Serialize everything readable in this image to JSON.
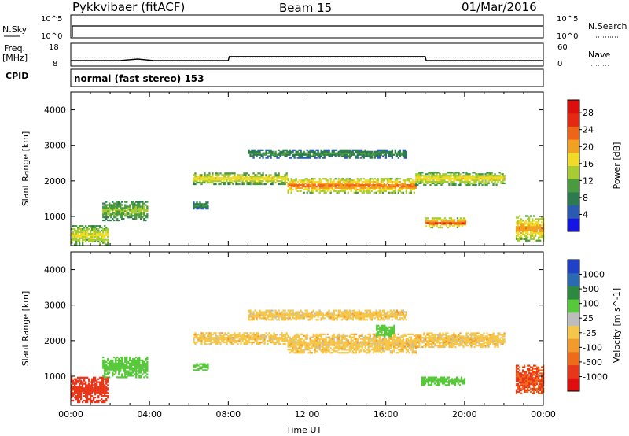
{
  "header": {
    "title": "Pykkvibaer (fitACF)",
    "beam": "Beam 15",
    "date": "01/Mar/2016"
  },
  "noise_panel": {
    "left_label": "N.Sky",
    "right_label": "N.Search",
    "left_ticks": [
      "10^5",
      "10^0"
    ],
    "right_ticks": [
      "10^5",
      "10^0"
    ]
  },
  "freq_panel": {
    "left_label_1": "Freq.",
    "left_label_2": "[MHz]",
    "right_label": "Nave",
    "left_ticks": [
      "18",
      "8"
    ],
    "right_ticks": [
      "60",
      "0"
    ],
    "freq_series": [
      {
        "x": 0,
        "y": 9.8
      },
      {
        "x": 2.5,
        "y": 9.8
      },
      {
        "x": 3.4,
        "y": 10.6
      },
      {
        "x": 4.2,
        "y": 9.8
      },
      {
        "x": 8.0,
        "y": 9.8
      },
      {
        "x": 8.05,
        "y": 12.0
      },
      {
        "x": 18.0,
        "y": 12.0
      },
      {
        "x": 18.05,
        "y": 9.8
      },
      {
        "x": 24,
        "y": 9.8
      }
    ],
    "nave_series": [
      {
        "x": 0,
        "y": 22
      },
      {
        "x": 24,
        "y": 22
      }
    ]
  },
  "cpid": {
    "label": "CPID",
    "text": "normal (fast stereo) 153"
  },
  "chart_data": [
    {
      "type": "heatmap",
      "title": "",
      "xlabel": "Time UT",
      "ylabel": "Slant Range [km]",
      "xlim": [
        0,
        24
      ],
      "ylim": [
        180,
        4500
      ],
      "xticks": [
        "00:00",
        "04:00",
        "08:00",
        "12:00",
        "16:00",
        "20:00",
        "00:00"
      ],
      "yticks": [
        "1000",
        "2000",
        "3000",
        "4000"
      ],
      "colorbar": {
        "label": "Power [dB]",
        "range": [
          0,
          31
        ],
        "ticks": [
          "4",
          "8",
          "12",
          "16",
          "20",
          "24",
          "28"
        ],
        "colors": [
          "#1414e6",
          "#2a5ab4",
          "#2c7a50",
          "#4a9a3e",
          "#a6cc32",
          "#f0dc28",
          "#f2a020",
          "#ef6518",
          "#e42812",
          "#dc0e0e"
        ]
      },
      "features": [
        {
          "t0": 0.0,
          "t1": 1.9,
          "r_center": 450,
          "r_half": 300,
          "value": 17
        },
        {
          "t0": 1.6,
          "t1": 3.9,
          "r_center": 1150,
          "r_half": 280,
          "value": 14
        },
        {
          "t0": 6.2,
          "t1": 11.0,
          "r_center": 2050,
          "r_half": 160,
          "value": 18
        },
        {
          "t0": 11.0,
          "t1": 17.5,
          "r_center": 1850,
          "r_half": 200,
          "value": 23
        },
        {
          "t0": 17.5,
          "t1": 22.0,
          "r_center": 2050,
          "r_half": 180,
          "value": 18
        },
        {
          "t0": 9.0,
          "t1": 17.0,
          "r_center": 2750,
          "r_half": 120,
          "value": 10
        },
        {
          "t0": 18.0,
          "t1": 20.0,
          "r_center": 800,
          "r_half": 130,
          "value": 24
        },
        {
          "t0": 22.6,
          "t1": 24.0,
          "r_center": 650,
          "r_half": 350,
          "value": 21
        },
        {
          "t0": 6.2,
          "t1": 7.0,
          "r_center": 1300,
          "r_half": 100,
          "value": 10
        }
      ]
    },
    {
      "type": "heatmap",
      "title": "",
      "xlabel": "Time UT",
      "ylabel": "Slant Range [km]",
      "xlim": [
        0,
        24
      ],
      "ylim": [
        180,
        4500
      ],
      "xticks": [
        "00:00",
        "04:00",
        "08:00",
        "12:00",
        "16:00",
        "20:00",
        "00:00"
      ],
      "yticks": [
        "1000",
        "2000",
        "3000",
        "4000"
      ],
      "colorbar": {
        "label": "Velocity [m s^-1]",
        "ticks": [
          "1000",
          "500",
          "100",
          "25",
          "-25",
          "-100",
          "-500",
          "-1000"
        ],
        "colors": [
          "#2040c8",
          "#2a6ab0",
          "#2c8a40",
          "#56c83a",
          "#bdbdbd",
          "#f5c64a",
          "#f29a2a",
          "#f06a1c",
          "#e8361a",
          "#e00e0e"
        ]
      },
      "features": [
        {
          "t0": 0.0,
          "t1": 1.9,
          "r_center": 600,
          "r_half": 350,
          "value": -300
        },
        {
          "t0": 1.6,
          "t1": 3.9,
          "r_center": 1250,
          "r_half": 300,
          "value": 150
        },
        {
          "t0": 6.2,
          "t1": 11.0,
          "r_center": 2050,
          "r_half": 160,
          "value": 0
        },
        {
          "t0": 11.0,
          "t1": 17.5,
          "r_center": 1900,
          "r_half": 260,
          "value": 0
        },
        {
          "t0": 17.5,
          "t1": 22.0,
          "r_center": 2000,
          "r_half": 200,
          "value": 0
        },
        {
          "t0": 9.0,
          "t1": 17.0,
          "r_center": 2700,
          "r_half": 130,
          "value": 0
        },
        {
          "t0": 15.5,
          "t1": 16.4,
          "r_center": 2280,
          "r_half": 180,
          "value": 200
        },
        {
          "t0": 17.8,
          "t1": 20.0,
          "r_center": 850,
          "r_half": 120,
          "value": 150
        },
        {
          "t0": 22.6,
          "t1": 24.0,
          "r_center": 900,
          "r_half": 400,
          "value": -250
        },
        {
          "t0": 6.2,
          "t1": 7.0,
          "r_center": 1250,
          "r_half": 100,
          "value": 150
        }
      ]
    }
  ],
  "colors": {
    "axis": "#000000",
    "blank": "#ffffff"
  }
}
